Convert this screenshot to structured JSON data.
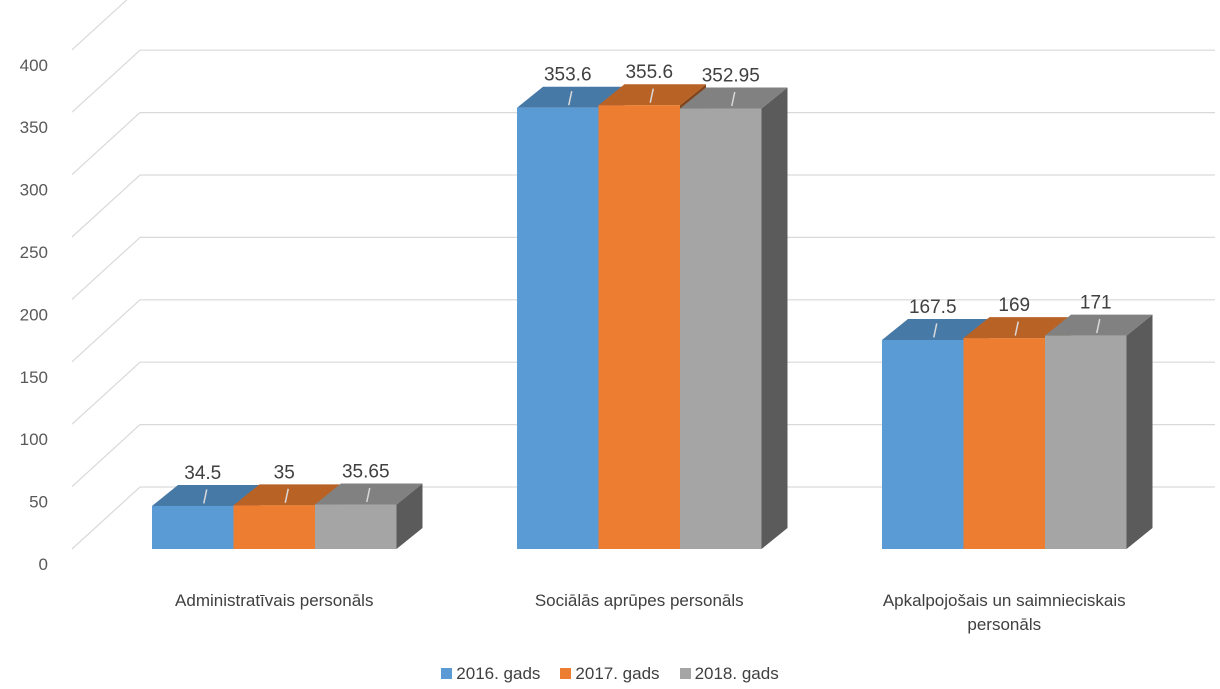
{
  "chart_data": {
    "type": "bar",
    "title": "",
    "xlabel": "",
    "ylabel": "",
    "categories": [
      [
        "Administratīvais personāls"
      ],
      [
        "Sociālās aprūpes personāls"
      ],
      [
        "Apkalpojošais un saimnieciskais",
        "personāls"
      ]
    ],
    "series": [
      {
        "name": "2016. gads",
        "color": "#5B9BD5",
        "values": [
          34.5,
          353.6,
          167.5
        ],
        "labels": [
          "34.5",
          "353.6",
          "167.5"
        ]
      },
      {
        "name": "2017. gads",
        "color": "#ED7D31",
        "values": [
          35,
          355.6,
          169
        ],
        "labels": [
          "35",
          "355.6",
          "169"
        ]
      },
      {
        "name": "2018. gads",
        "color": "#A5A5A5",
        "values": [
          35.65,
          352.95,
          171
        ],
        "labels": [
          "35.65",
          "352.95",
          "171"
        ]
      }
    ],
    "yticks": [
      0,
      50,
      100,
      150,
      200,
      250,
      300,
      350,
      400
    ],
    "ylim": [
      0,
      450
    ],
    "grid": true,
    "legend_position": "bottom",
    "style": "3d-clustered-column"
  }
}
